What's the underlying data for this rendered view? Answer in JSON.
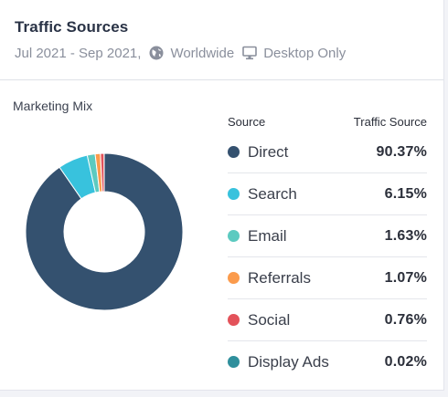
{
  "header": {
    "title": "Traffic Sources",
    "date_range": "Jul 2021 - Sep 2021,",
    "region": "Worldwide",
    "device": "Desktop Only"
  },
  "section_label": "Marketing Mix",
  "table": {
    "col_source": "Source",
    "col_value": "Traffic Source"
  },
  "chart_data": {
    "type": "pie",
    "title": "",
    "donut": true,
    "legend": [
      "Direct",
      "Search",
      "Email",
      "Referrals",
      "Social",
      "Display Ads"
    ],
    "series": [
      {
        "label": "Direct",
        "value": 90.37,
        "display": "90.37%",
        "color": "#34516f"
      },
      {
        "label": "Search",
        "value": 6.15,
        "display": "6.15%",
        "color": "#38c2dd"
      },
      {
        "label": "Email",
        "value": 1.63,
        "display": "1.63%",
        "color": "#5ccac0"
      },
      {
        "label": "Referrals",
        "value": 1.07,
        "display": "1.07%",
        "color": "#fb9b4c"
      },
      {
        "label": "Social",
        "value": 0.76,
        "display": "0.76%",
        "color": "#e3525a"
      },
      {
        "label": "Display Ads",
        "value": 0.02,
        "display": "0.02%",
        "color": "#2f8f9c"
      }
    ]
  }
}
